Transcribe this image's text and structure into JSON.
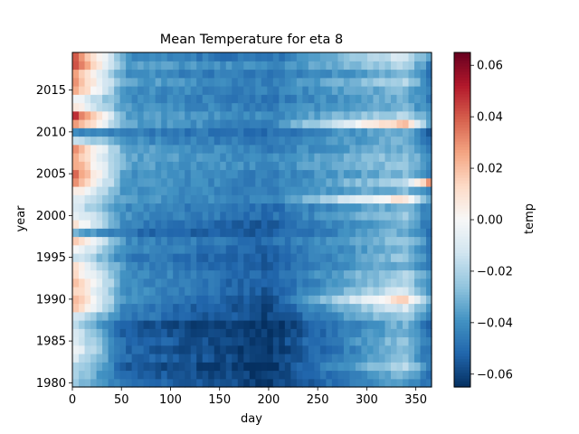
{
  "chart_data": {
    "type": "heatmap",
    "title": "Mean Temperature for eta 8",
    "xlabel": "day",
    "ylabel": "year",
    "colorbar_label": "temp",
    "colormap": "RdBu_r",
    "x_range": [
      1,
      366
    ],
    "y_range": [
      1980,
      2019
    ],
    "xlim": [
      0,
      366
    ],
    "ylim": [
      1979.5,
      2019.5
    ],
    "vmin": -0.065,
    "vmax": 0.065,
    "x_ticks": [
      0,
      50,
      100,
      150,
      200,
      250,
      300,
      350
    ],
    "y_ticks": [
      1980,
      1985,
      1990,
      1995,
      2000,
      2005,
      2010,
      2015
    ],
    "colorbar_ticks": [
      -0.06,
      -0.04,
      -0.02,
      0.0,
      0.02,
      0.04,
      0.06
    ],
    "x_tick_labels": [
      "0",
      "50",
      "100",
      "150",
      "200",
      "250",
      "300",
      "350"
    ],
    "y_tick_labels": [
      "1980",
      "1985",
      "1990",
      "1995",
      "2000",
      "2005",
      "2010",
      "2015"
    ],
    "colorbar_tick_labels": [
      "−0.06",
      "−0.04",
      "−0.02",
      "0.00",
      "0.02",
      "0.04",
      "0.06"
    ],
    "yearly_profile": {
      "1980": [
        -0.025,
        -0.05,
        -0.062,
        -0.035,
        -0.05
      ],
      "1981": [
        -0.02,
        -0.052,
        -0.063,
        -0.03,
        -0.048
      ],
      "1982": [
        -0.015,
        -0.055,
        -0.064,
        -0.02,
        -0.045
      ],
      "1983": [
        -0.01,
        -0.05,
        -0.063,
        -0.025,
        -0.05
      ],
      "1984": [
        0.0,
        -0.052,
        -0.064,
        -0.03,
        -0.052
      ],
      "1985": [
        -0.005,
        -0.05,
        -0.063,
        -0.025,
        -0.048
      ],
      "1986": [
        -0.01,
        -0.055,
        -0.064,
        -0.03,
        -0.05
      ],
      "1987": [
        -0.015,
        -0.055,
        -0.065,
        -0.03,
        -0.052
      ],
      "1988": [
        -0.01,
        -0.045,
        -0.06,
        -0.02,
        -0.045
      ],
      "1989": [
        0.02,
        -0.045,
        -0.06,
        -0.01,
        -0.04
      ],
      "1990": [
        0.025,
        -0.04,
        -0.058,
        0.015,
        -0.03
      ],
      "1991": [
        0.02,
        -0.04,
        -0.055,
        -0.01,
        -0.04
      ],
      "1992": [
        0.025,
        -0.04,
        -0.055,
        -0.02,
        -0.045
      ],
      "1993": [
        0.015,
        -0.04,
        -0.052,
        -0.02,
        -0.04
      ],
      "1994": [
        0.01,
        -0.042,
        -0.055,
        -0.03,
        -0.045
      ],
      "1995": [
        -0.01,
        -0.045,
        -0.055,
        -0.025,
        -0.048
      ],
      "1996": [
        0.005,
        -0.042,
        -0.052,
        -0.03,
        -0.05
      ],
      "1997": [
        0.02,
        -0.042,
        -0.05,
        -0.025,
        -0.045
      ],
      "1998": [
        -0.03,
        -0.05,
        -0.055,
        -0.03,
        -0.05
      ],
      "1999": [
        0.01,
        -0.045,
        -0.055,
        -0.03,
        -0.048
      ],
      "2000": [
        0.0,
        -0.04,
        -0.05,
        -0.025,
        -0.045
      ],
      "2001": [
        -0.01,
        -0.042,
        -0.05,
        -0.03,
        -0.048
      ],
      "2002": [
        -0.005,
        -0.038,
        -0.045,
        0.01,
        -0.04
      ],
      "2003": [
        0.01,
        -0.04,
        -0.045,
        -0.03,
        -0.045
      ],
      "2004": [
        0.03,
        -0.038,
        -0.045,
        -0.02,
        0.03
      ],
      "2005": [
        0.04,
        -0.038,
        -0.045,
        -0.03,
        -0.045
      ],
      "2006": [
        0.03,
        -0.035,
        -0.042,
        -0.025,
        -0.04
      ],
      "2007": [
        0.025,
        -0.035,
        -0.042,
        -0.025,
        -0.04
      ],
      "2008": [
        0.03,
        -0.035,
        -0.045,
        -0.03,
        -0.045
      ],
      "2009": [
        -0.01,
        -0.04,
        -0.048,
        -0.03,
        -0.05
      ],
      "2010": [
        -0.04,
        -0.045,
        -0.05,
        -0.03,
        -0.055
      ],
      "2011": [
        0.035,
        -0.035,
        -0.045,
        0.02,
        -0.04
      ],
      "2012": [
        0.05,
        -0.035,
        -0.042,
        -0.02,
        -0.04
      ],
      "2013": [
        0.01,
        -0.038,
        -0.045,
        -0.03,
        -0.045
      ],
      "2014": [
        0.0,
        -0.04,
        -0.048,
        -0.03,
        -0.048
      ],
      "2015": [
        0.03,
        -0.04,
        -0.045,
        -0.03,
        -0.048
      ],
      "2016": [
        0.03,
        -0.035,
        -0.045,
        -0.02,
        -0.045
      ],
      "2017": [
        0.03,
        -0.04,
        -0.048,
        -0.03,
        -0.05
      ],
      "2018": [
        0.05,
        -0.035,
        -0.042,
        -0.02,
        -0.045
      ],
      "2019": [
        0.045,
        -0.04,
        -0.05,
        -0.01,
        -0.04
      ]
    },
    "profile_anchor_days": [
      1,
      55,
      200,
      340,
      366
    ],
    "grid": false,
    "colorbar_position": "right"
  }
}
